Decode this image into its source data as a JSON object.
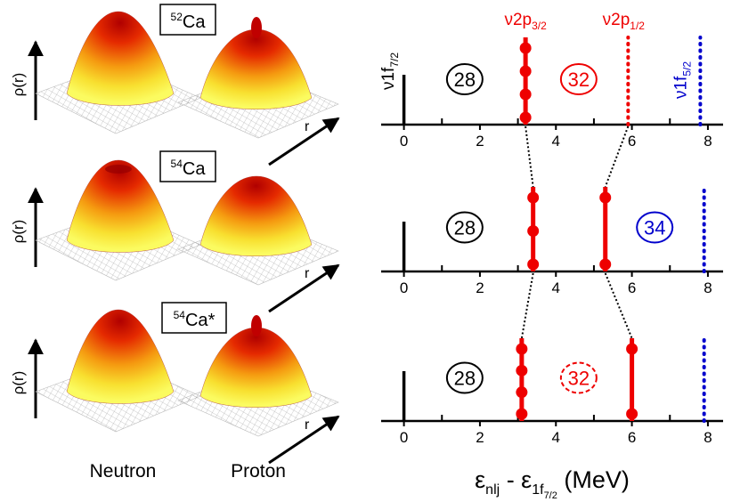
{
  "colors": {
    "neutron_state": "#000000",
    "p32": "#ee0000",
    "p12": "#ee0000",
    "f52": "#0000cc",
    "magic_28": "#000000",
    "magic_32": "#ee0000",
    "magic_34": "#0000cc",
    "connector": "#000000"
  },
  "left_panel": {
    "rho_label": "ρ(r)",
    "r_label": "r",
    "col_labels": [
      "Neutron",
      "Proton"
    ],
    "rows": [
      {
        "nucleus_mass": "52",
        "nucleus_sym": "Ca",
        "nucleus_suffix": ""
      },
      {
        "nucleus_mass": "54",
        "nucleus_sym": "Ca",
        "nucleus_suffix": ""
      },
      {
        "nucleus_mass": "54",
        "nucleus_sym": "Ca",
        "nucleus_suffix": "*"
      }
    ]
  },
  "chart_data": {
    "type": "line",
    "xlabel": {
      "main": "ε",
      "main_sub": "nlj",
      "mid": " - ε",
      "mid_sub": "1f",
      "mid_subsub": "7/2",
      "unit": " (MeV)"
    },
    "xlim": [
      -0.6,
      8.4
    ],
    "xticks": [
      0,
      2,
      4,
      6,
      8
    ],
    "minor_ticks": [
      1,
      3,
      5,
      7
    ],
    "level_labels": {
      "f72": {
        "main": "ν1f",
        "sub": "7/2"
      },
      "p32": {
        "main": "ν2p",
        "sub": "3/2"
      },
      "p12": {
        "main": "ν2p",
        "sub": "1/2"
      },
      "f52": {
        "main": "ν1f",
        "sub": "5/2"
      }
    },
    "panels": [
      {
        "nucleus": "52Ca",
        "levels": [
          {
            "id": "f72",
            "energy": 0.0,
            "occupancy": 1.0,
            "style": "solid",
            "dots": 0
          },
          {
            "id": "p32",
            "energy": 3.2,
            "occupancy": 1.0,
            "style": "solid",
            "dots": 4
          },
          {
            "id": "p12",
            "energy": 5.9,
            "occupancy": 0.0,
            "style": "dotted",
            "dots": 0
          },
          {
            "id": "f52",
            "energy": 7.8,
            "occupancy": 0.0,
            "style": "dotted",
            "dots": 0
          }
        ],
        "magic": [
          {
            "label": "28",
            "x": 1.6,
            "style": "solid",
            "color_key": "magic_28"
          },
          {
            "label": "32",
            "x": 4.6,
            "style": "solid",
            "color_key": "magic_32"
          }
        ]
      },
      {
        "nucleus": "54Ca",
        "levels": [
          {
            "id": "f72",
            "energy": 0.0,
            "occupancy": 1.0,
            "style": "solid",
            "dots": 0
          },
          {
            "id": "p32",
            "energy": 3.4,
            "occupancy": 1.0,
            "style": "solid",
            "dots": 3
          },
          {
            "id": "p12",
            "energy": 5.3,
            "occupancy": 1.0,
            "style": "solid",
            "dots": 2
          },
          {
            "id": "f52",
            "energy": 7.9,
            "occupancy": 0.0,
            "style": "dotted",
            "dots": 0
          }
        ],
        "magic": [
          {
            "label": "28",
            "x": 1.6,
            "style": "solid",
            "color_key": "magic_28"
          },
          {
            "label": "34",
            "x": 6.6,
            "style": "solid",
            "color_key": "magic_34"
          }
        ]
      },
      {
        "nucleus": "54Ca*",
        "levels": [
          {
            "id": "f72",
            "energy": 0.0,
            "occupancy": 1.0,
            "style": "solid",
            "dots": 0
          },
          {
            "id": "p32",
            "energy": 3.1,
            "occupancy": 1.0,
            "style": "solid",
            "dots": 4
          },
          {
            "id": "p12",
            "energy": 6.0,
            "occupancy": 1.0,
            "style": "solid",
            "dots": 2
          },
          {
            "id": "f52",
            "energy": 7.9,
            "occupancy": 0.0,
            "style": "dotted",
            "dots": 0
          }
        ],
        "magic": [
          {
            "label": "28",
            "x": 1.6,
            "style": "solid",
            "color_key": "magic_28"
          },
          {
            "label": "32",
            "x": 4.6,
            "style": "dashed",
            "color_key": "magic_32"
          }
        ]
      }
    ]
  }
}
